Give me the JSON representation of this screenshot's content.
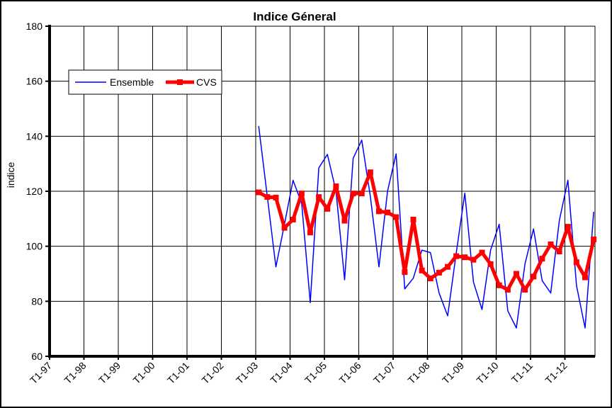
{
  "chart_data": {
    "type": "line",
    "title": "Indice Géneral",
    "xlabel": "",
    "ylabel": "indice",
    "ylim": [
      60,
      180
    ],
    "yticks": [
      60,
      80,
      100,
      120,
      140,
      160,
      180
    ],
    "grid": true,
    "legend_position": "top-left",
    "x_tick_labels": [
      "T1-97",
      "T1-98",
      "T1-99",
      "T1-00",
      "T1-01",
      "T1-02",
      "T1-03",
      "T1-04",
      "T1-05",
      "T1-06",
      "T1-07",
      "T1-08",
      "T1-09",
      "T1-10",
      "T1-11",
      "T1-12"
    ],
    "x_start_label": "T1-03",
    "x_frequency": "quarterly",
    "series": [
      {
        "name": "Ensemble",
        "color": "#0000ff",
        "values": [
          143.7,
          118,
          92.5,
          108,
          124,
          115.6,
          79.5,
          128.5,
          133.4,
          120,
          87.8,
          132,
          138.6,
          118,
          92.5,
          120,
          133.6,
          84.5,
          88.4,
          98.6,
          97.7,
          83,
          74.7,
          97.5,
          119.3,
          87,
          77,
          98.6,
          108,
          76.5,
          70.3,
          93.5,
          106.3,
          87.5,
          83,
          109.3,
          124,
          85.7,
          70.3,
          112.5
        ]
      },
      {
        "name": "CVS",
        "color": "#ff0000",
        "values": [
          119.6,
          117.9,
          117.7,
          106.7,
          109.7,
          119.2,
          105,
          117.9,
          113.6,
          121.8,
          109.3,
          119.2,
          119.2,
          126.9,
          112.7,
          112.3,
          110.6,
          90.6,
          109.7,
          91.2,
          88.3,
          90.4,
          92.5,
          96.4,
          96,
          95.1,
          97.7,
          93.5,
          85.8,
          84.2,
          90,
          84.2,
          89,
          95.5,
          100.7,
          98.1,
          107.1,
          94.2,
          88.7,
          102.5
        ]
      }
    ]
  }
}
